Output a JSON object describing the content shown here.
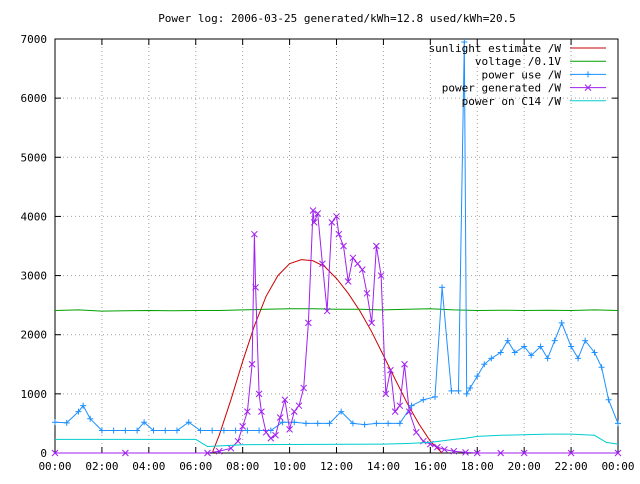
{
  "chart_data": {
    "type": "line",
    "title": "Power log: 2006-03-25 generated/kWh=12.8 used/kWh=20.5",
    "xlabel": "",
    "ylabel": "",
    "xlim": [
      0,
      24
    ],
    "ylim": [
      0,
      7000
    ],
    "grid": true,
    "legend_position": "top-right",
    "x_ticks": [
      "00:00",
      "02:00",
      "04:00",
      "06:00",
      "08:00",
      "10:00",
      "12:00",
      "14:00",
      "16:00",
      "18:00",
      "20:00",
      "22:00",
      "00:00"
    ],
    "y_ticks": [
      "0",
      "1000",
      "2000",
      "3000",
      "4000",
      "5000",
      "6000",
      "7000"
    ],
    "series": [
      {
        "name": "sunlight estimate /W",
        "color": "#cc0000",
        "style": "line",
        "x": [
          6.7,
          7.0,
          7.5,
          8.0,
          8.5,
          9.0,
          9.5,
          10.0,
          10.5,
          11.0,
          11.5,
          12.0,
          12.5,
          13.0,
          13.5,
          14.0,
          14.5,
          15.0,
          15.5,
          16.0,
          16.5
        ],
        "values": [
          0,
          300,
          900,
          1550,
          2150,
          2650,
          3000,
          3200,
          3270,
          3250,
          3150,
          2950,
          2700,
          2400,
          2050,
          1650,
          1250,
          850,
          500,
          200,
          0
        ]
      },
      {
        "name": "voltage /0.1V",
        "color": "#00a000",
        "style": "line",
        "x": [
          0,
          1,
          2,
          3,
          4,
          5,
          6,
          7,
          8,
          9,
          10,
          11,
          12,
          13,
          14,
          15,
          16,
          17,
          18,
          19,
          20,
          21,
          22,
          23,
          24
        ],
        "values": [
          2410,
          2420,
          2400,
          2405,
          2410,
          2405,
          2410,
          2410,
          2420,
          2430,
          2440,
          2440,
          2430,
          2430,
          2420,
          2430,
          2440,
          2420,
          2410,
          2415,
          2410,
          2415,
          2410,
          2420,
          2410
        ]
      },
      {
        "name": "power use /W",
        "color": "#1e90ff",
        "style": "points-plus",
        "x": [
          0.0,
          0.5,
          1.0,
          1.2,
          1.5,
          2.0,
          2.5,
          3.0,
          3.5,
          3.8,
          4.2,
          4.7,
          5.2,
          5.7,
          6.2,
          6.7,
          7.2,
          7.7,
          8.2,
          8.7,
          9.2,
          9.7,
          10.2,
          10.7,
          11.2,
          11.7,
          12.2,
          12.7,
          13.2,
          13.7,
          14.2,
          14.7,
          15.2,
          15.7,
          16.2,
          16.5,
          16.9,
          17.2,
          17.45,
          17.55,
          17.7,
          18.0,
          18.3,
          18.6,
          19.0,
          19.3,
          19.6,
          20.0,
          20.3,
          20.7,
          21.0,
          21.3,
          21.6,
          22.0,
          22.3,
          22.6,
          23.0,
          23.3,
          23.6,
          24.0
        ],
        "values": [
          520,
          510,
          700,
          800,
          580,
          380,
          380,
          380,
          380,
          520,
          380,
          380,
          380,
          520,
          380,
          380,
          380,
          380,
          380,
          380,
          380,
          520,
          520,
          500,
          500,
          500,
          700,
          500,
          480,
          500,
          500,
          500,
          800,
          900,
          950,
          2800,
          1050,
          1050,
          6950,
          1000,
          1100,
          1300,
          1500,
          1600,
          1700,
          1900,
          1700,
          1800,
          1650,
          1800,
          1600,
          1900,
          2200,
          1800,
          1600,
          1900,
          1700,
          1450,
          900,
          500
        ]
      },
      {
        "name": "power generated /W",
        "color": "#a020f0",
        "style": "points-x",
        "x": [
          0.0,
          3.0,
          6.5,
          7.0,
          7.5,
          7.8,
          8.0,
          8.2,
          8.4,
          8.5,
          8.55,
          8.7,
          8.8,
          9.0,
          9.2,
          9.4,
          9.6,
          9.8,
          10.0,
          10.2,
          10.4,
          10.6,
          10.8,
          11.0,
          11.05,
          11.2,
          11.4,
          11.6,
          11.8,
          12.0,
          12.1,
          12.3,
          12.5,
          12.7,
          12.9,
          13.1,
          13.3,
          13.5,
          13.7,
          13.9,
          14.1,
          14.3,
          14.5,
          14.7,
          14.9,
          15.1,
          15.4,
          15.7,
          16.0,
          16.3,
          16.6,
          17.0,
          17.5,
          18.0,
          19.0,
          20.0,
          22.0,
          24.0
        ],
        "values": [
          0,
          0,
          0,
          30,
          80,
          200,
          450,
          700,
          1500,
          3700,
          2800,
          1000,
          700,
          350,
          250,
          300,
          600,
          900,
          400,
          700,
          800,
          1100,
          2200,
          4100,
          3900,
          4050,
          3200,
          2400,
          3900,
          4000,
          3700,
          3500,
          2900,
          3300,
          3200,
          3100,
          2700,
          2200,
          3500,
          3000,
          1000,
          1400,
          700,
          800,
          1500,
          700,
          350,
          200,
          150,
          100,
          60,
          30,
          10,
          0,
          0,
          0,
          0,
          0
        ]
      },
      {
        "name": "power on C14 /W",
        "color": "#00cccc",
        "style": "line",
        "x": [
          0,
          6,
          6.5,
          8,
          14,
          15,
          16,
          17,
          17.5,
          18,
          19,
          20,
          21,
          22,
          23,
          23.5,
          24
        ],
        "values": [
          230,
          230,
          110,
          140,
          150,
          160,
          180,
          230,
          250,
          280,
          300,
          310,
          320,
          320,
          300,
          180,
          150
        ]
      }
    ]
  }
}
